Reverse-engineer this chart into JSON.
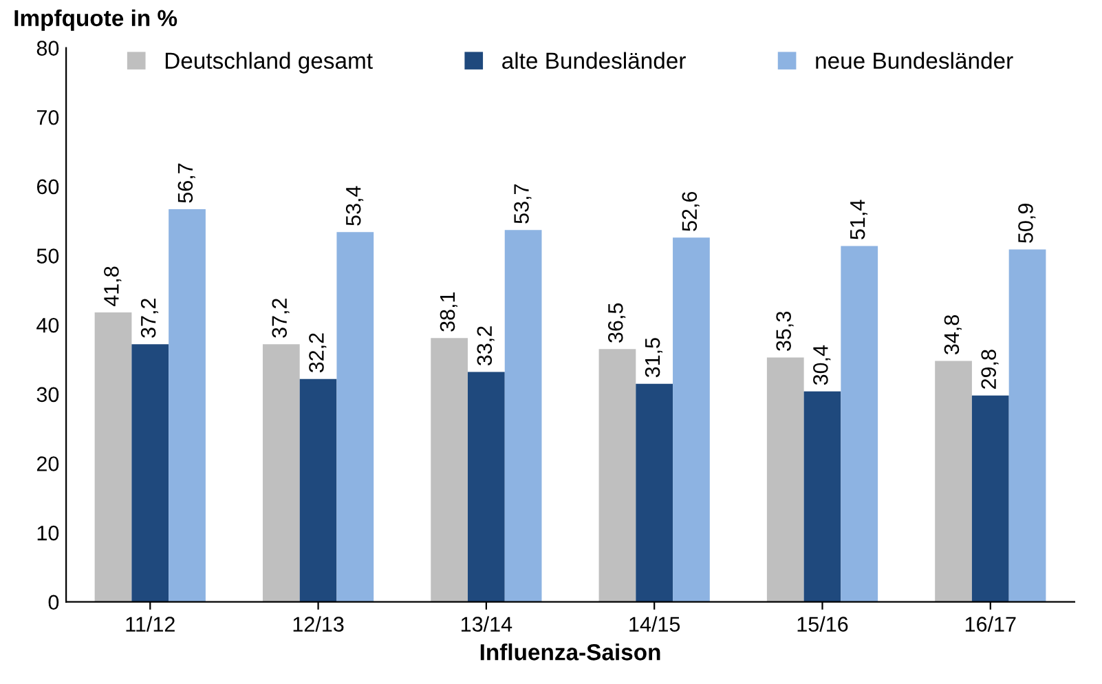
{
  "chart_data": {
    "type": "bar",
    "ylabel": "Impfquote in %",
    "xlabel": "Influenza-Saison",
    "categories": [
      "11/12",
      "12/13",
      "13/14",
      "14/15",
      "15/16",
      "16/17"
    ],
    "series": [
      {
        "name": "Deutschland gesamt",
        "color": "#bfbfbf",
        "values": [
          41.8,
          37.2,
          38.1,
          36.5,
          35.3,
          34.8
        ],
        "value_labels": [
          "41,8",
          "37,2",
          "38,1",
          "36,5",
          "35,3",
          "34,8"
        ]
      },
      {
        "name": "alte Bundesländer",
        "color": "#1f497d",
        "values": [
          37.2,
          32.2,
          33.2,
          31.5,
          30.4,
          29.8
        ],
        "value_labels": [
          "37,2",
          "32,2",
          "33,2",
          "31,5",
          "30,4",
          "29,8"
        ]
      },
      {
        "name": "neue Bundesländer",
        "color": "#8db3e2",
        "values": [
          56.7,
          53.4,
          53.7,
          52.6,
          51.4,
          50.9
        ],
        "value_labels": [
          "56,7",
          "53,4",
          "53,7",
          "52,6",
          "51,4",
          "50,9"
        ]
      }
    ],
    "ylim": [
      0,
      80
    ],
    "yticks": [
      0,
      10,
      20,
      30,
      40,
      50,
      60,
      70,
      80
    ],
    "grid": false,
    "legend": "top"
  }
}
